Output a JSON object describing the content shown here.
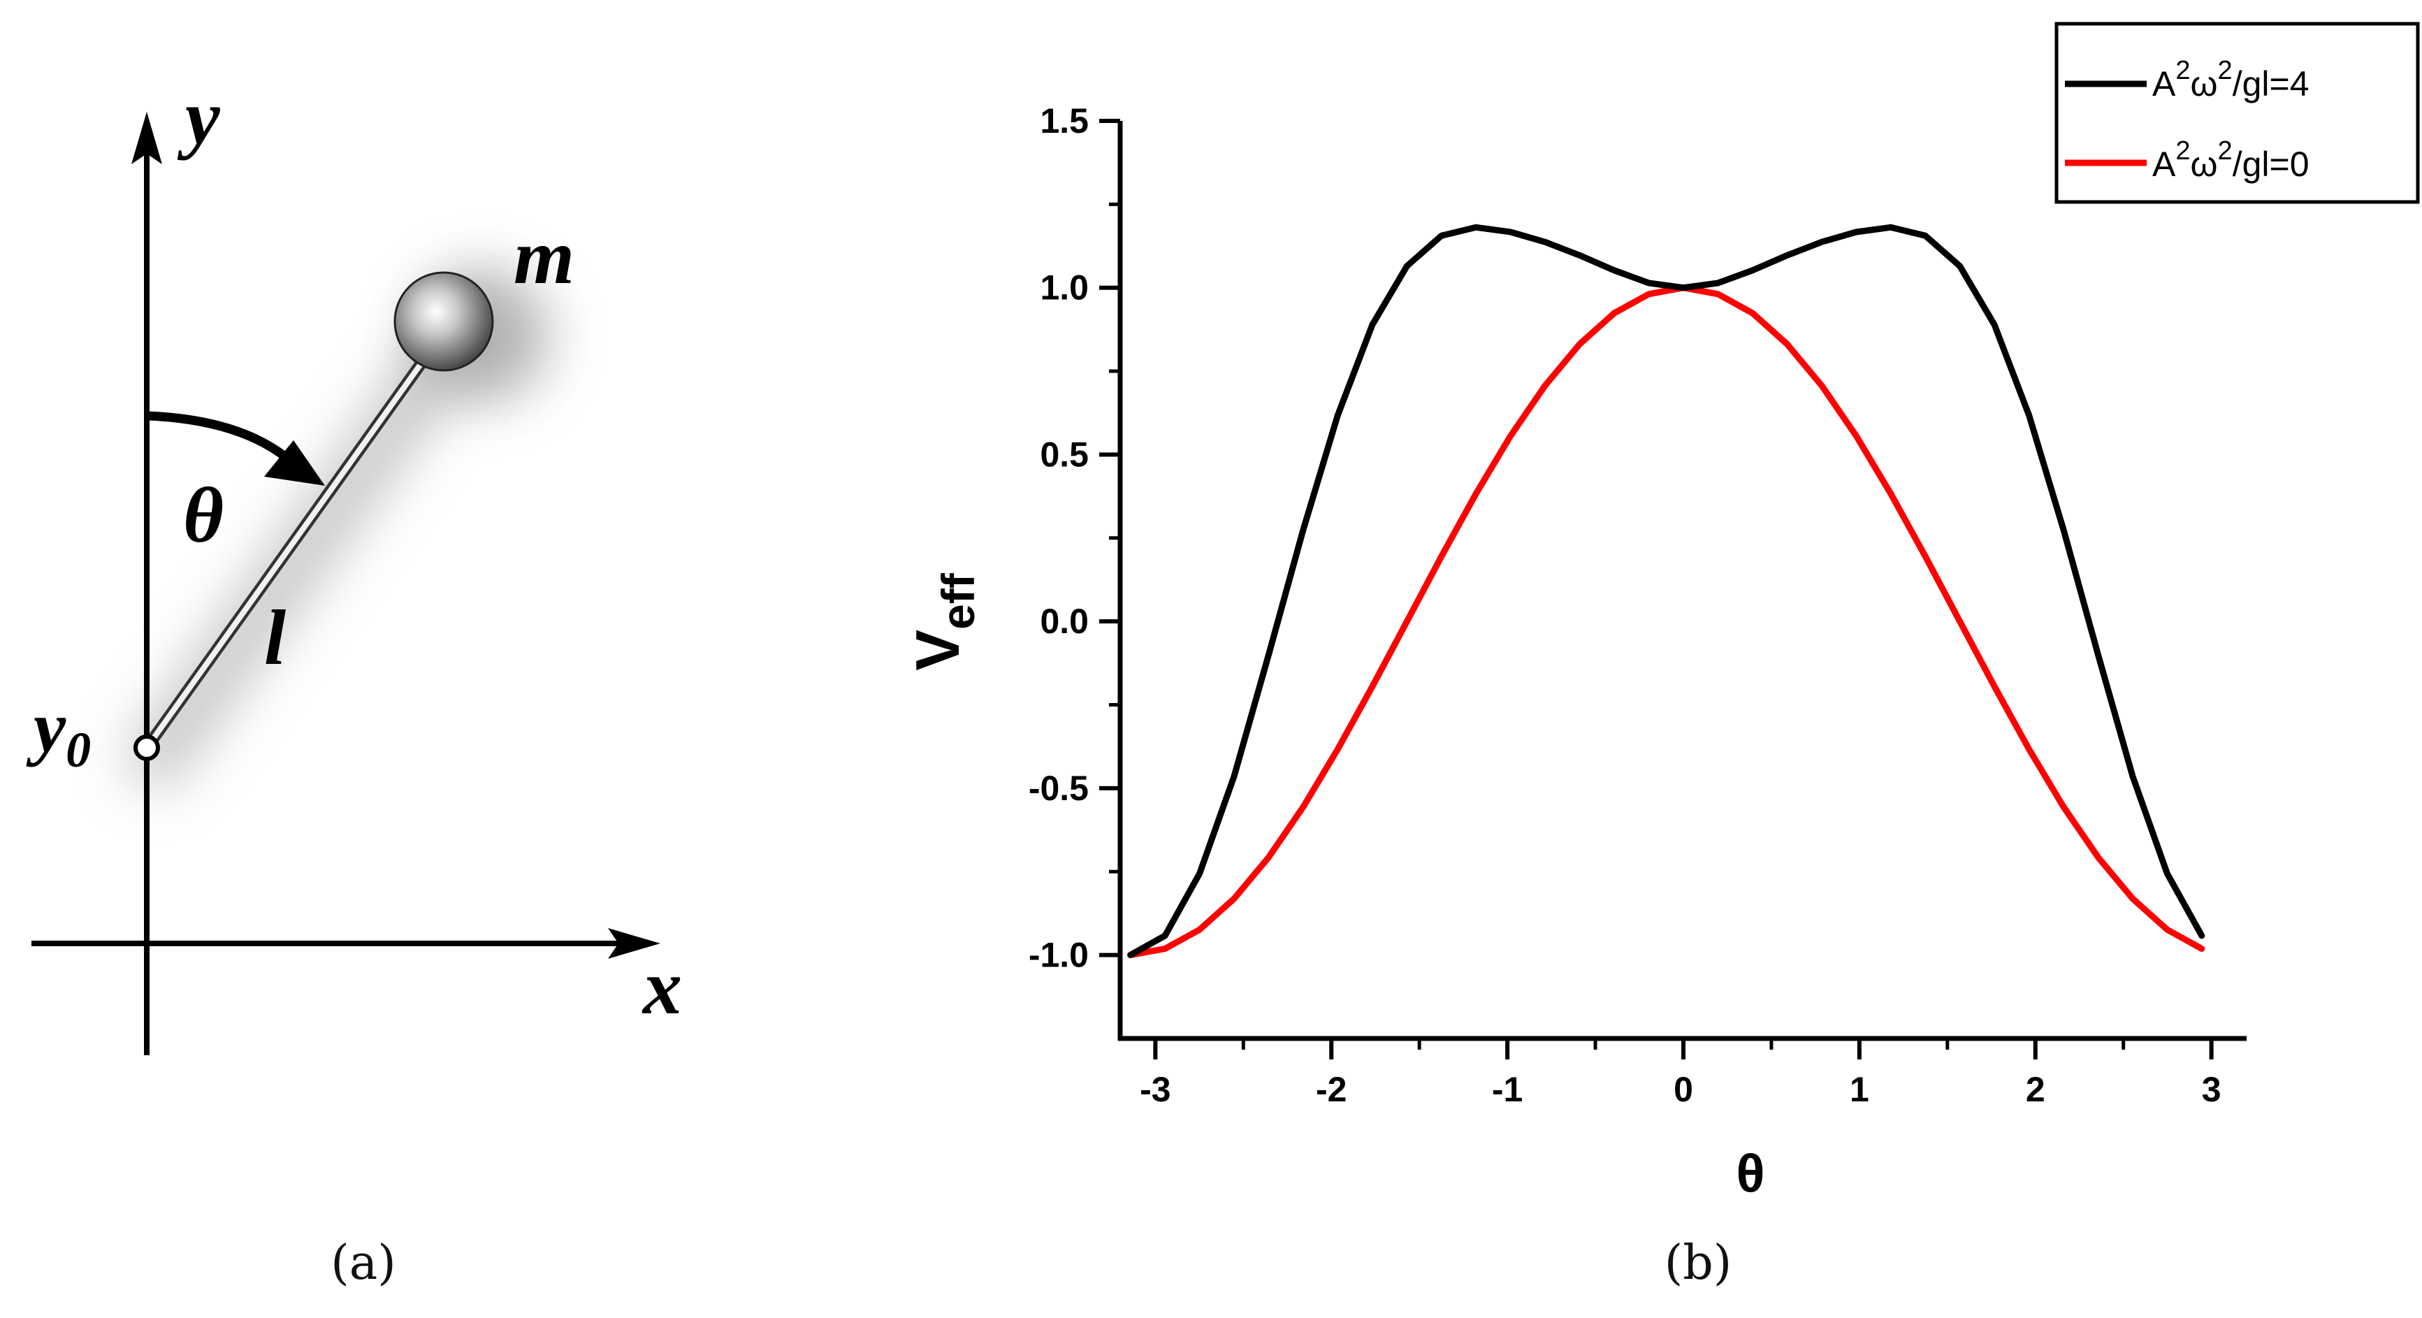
{
  "panel_a": {
    "caption": "(a)",
    "labels": {
      "y_axis": "y",
      "x_axis": "x",
      "mass": "m",
      "angle": "θ",
      "length": "l",
      "pivot": "y",
      "pivot_sub": "0"
    }
  },
  "panel_b": {
    "caption": "(b)"
  },
  "chart_data": {
    "type": "line",
    "title": "",
    "xlabel": "θ",
    "ylabel": "V",
    "ylabel_sub": "eff",
    "xlim": [
      -3.2,
      3.2
    ],
    "ylim": [
      -1.25,
      1.5
    ],
    "xticks": [
      -3,
      -2,
      -1,
      0,
      1,
      2,
      3
    ],
    "yticks": [
      -1.0,
      -0.5,
      0.0,
      0.5,
      1.0,
      1.5
    ],
    "x": [
      -3.1416,
      -2.9452,
      -2.7489,
      -2.5525,
      -2.3562,
      -2.1598,
      -1.9635,
      -1.7671,
      -1.5708,
      -1.3744,
      -1.1781,
      -0.9817,
      -0.7854,
      -0.589,
      -0.3927,
      -0.1963,
      0.0,
      0.1963,
      0.3927,
      0.589,
      0.7854,
      0.9817,
      1.1781,
      1.3744,
      1.5708,
      1.7671,
      1.9635,
      2.1598,
      2.3562,
      2.5525,
      2.7489,
      2.9452
    ],
    "series": [
      {
        "name": "A2ω2/gl=4",
        "legend_parts": [
          "A",
          "2",
          "ω",
          "2",
          "/gl=4"
        ],
        "color": "#000000",
        "values": [
          -1.0,
          -0.942,
          -0.756,
          -0.464,
          -0.1,
          0.275,
          0.618,
          0.889,
          1.065,
          1.156,
          1.181,
          1.167,
          1.137,
          1.097,
          1.052,
          1.014,
          1.0,
          1.014,
          1.052,
          1.097,
          1.137,
          1.167,
          1.181,
          1.156,
          1.065,
          0.889,
          0.618,
          0.275,
          -0.1,
          -0.464,
          -0.756,
          -0.942
        ]
      },
      {
        "name": "A2ω2/gl=0",
        "legend_parts": [
          "A",
          "2",
          "ω",
          "2",
          "/gl=0"
        ],
        "color": "#ff0000",
        "values": [
          -1.0,
          -0.981,
          -0.924,
          -0.831,
          -0.707,
          -0.556,
          -0.383,
          -0.195,
          0.0,
          0.195,
          0.383,
          0.556,
          0.707,
          0.831,
          0.924,
          0.981,
          1.0,
          0.981,
          0.924,
          0.831,
          0.707,
          0.556,
          0.383,
          0.195,
          0.0,
          -0.195,
          -0.383,
          -0.556,
          -0.707,
          -0.831,
          -0.924,
          -0.981
        ]
      }
    ],
    "legend_position": "top-right",
    "grid": false
  }
}
